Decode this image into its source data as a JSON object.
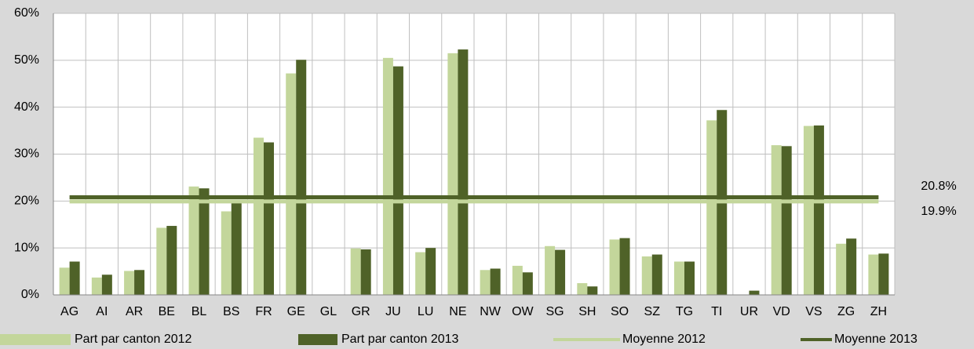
{
  "chart_data": {
    "type": "bar",
    "categories": [
      "AG",
      "AI",
      "AR",
      "BE",
      "BL",
      "BS",
      "FR",
      "GE",
      "GL",
      "GR",
      "JU",
      "LU",
      "NE",
      "NW",
      "OW",
      "SG",
      "SH",
      "SO",
      "SZ",
      "TG",
      "TI",
      "UR",
      "VD",
      "VS",
      "ZG",
      "ZH"
    ],
    "series": [
      {
        "name": "Part par canton 2012",
        "color": "#c3d69b",
        "values": [
          5.8,
          3.7,
          5.1,
          14.3,
          23.1,
          17.8,
          33.5,
          47.2,
          0,
          9.9,
          50.5,
          9.1,
          51.5,
          5.3,
          6.2,
          10.4,
          2.5,
          11.8,
          8.2,
          7.1,
          37.2,
          0,
          31.9,
          36.0,
          10.9,
          8.6
        ]
      },
      {
        "name": "Part par canton 2013",
        "color": "#4f6228",
        "values": [
          7.1,
          4.3,
          5.3,
          14.7,
          22.7,
          19.8,
          32.5,
          50.1,
          0,
          9.7,
          48.7,
          10.0,
          52.3,
          5.6,
          4.8,
          9.6,
          1.8,
          12.1,
          8.6,
          7.1,
          39.4,
          0.9,
          31.7,
          36.1,
          12.0,
          8.8
        ]
      }
    ],
    "averages": [
      {
        "name": "Moyenne 2012",
        "color": "#c3d69b",
        "value": 19.9,
        "value_label": "19.9%"
      },
      {
        "name": "Moyenne 2013",
        "color": "#4f6228",
        "value": 20.8,
        "value_label": "20.8%"
      }
    ],
    "ylim": [
      0,
      60
    ],
    "yticks": [
      {
        "value": 0,
        "label": "0%"
      },
      {
        "value": 10,
        "label": "10%"
      },
      {
        "value": 20,
        "label": "20%"
      },
      {
        "value": 30,
        "label": "30%"
      },
      {
        "value": 40,
        "label": "40%"
      },
      {
        "value": 50,
        "label": "50%"
      },
      {
        "value": 60,
        "label": "60%"
      }
    ],
    "grid": true
  }
}
